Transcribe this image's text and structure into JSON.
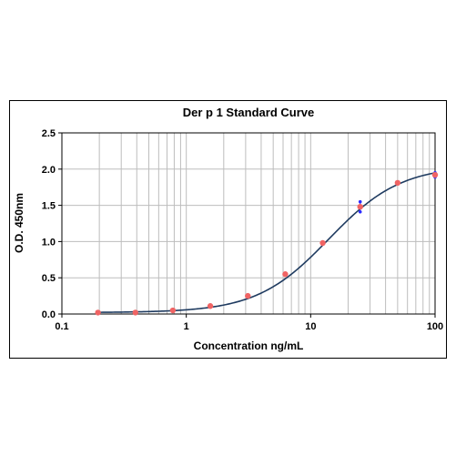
{
  "chart_data": {
    "type": "scatter",
    "title": "Der p 1 Standard Curve",
    "xlabel": "Concentration ng/mL",
    "ylabel": "O.D. 450nm",
    "x_scale": "log",
    "xlim": [
      0.1,
      100
    ],
    "ylim": [
      0,
      2.5
    ],
    "x_ticks": [
      0.1,
      1,
      10,
      100
    ],
    "x_tick_labels": [
      "0.1",
      "1",
      "10",
      "100"
    ],
    "y_ticks": [
      0,
      0.5,
      1.0,
      1.5,
      2.0,
      2.5
    ],
    "y_tick_labels": [
      "0.0",
      "0.5",
      "1.0",
      "1.5",
      "2.0",
      "2.5"
    ],
    "grid": true,
    "legend": "none",
    "colors": {
      "points": "#f06464",
      "curve": "#1f3b60",
      "error_bars": "#2a2aff",
      "grid": "#bdbdbd"
    },
    "series": [
      {
        "x": [
          0.195,
          0.39,
          0.78,
          1.56,
          3.125,
          6.25,
          12.5,
          25,
          50,
          100
        ],
        "y": [
          0.02,
          0.02,
          0.05,
          0.11,
          0.25,
          0.55,
          0.98,
          1.48,
          1.81,
          1.92
        ],
        "error": [
          0,
          0,
          0,
          0,
          0,
          0,
          0,
          0.07,
          0,
          0.03
        ]
      }
    ],
    "fit_curve": {
      "model": "4PL",
      "bottom": 0.02,
      "top": 2.05,
      "ec50": 14.0,
      "hill": 1.5
    }
  }
}
